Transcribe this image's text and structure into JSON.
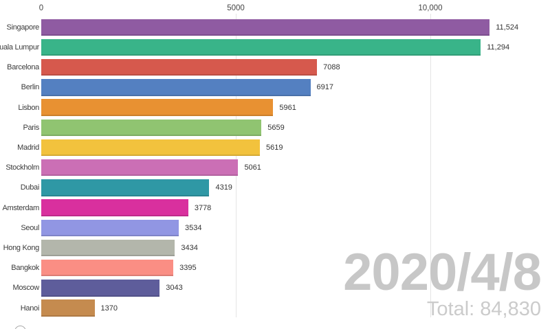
{
  "chart_data": {
    "type": "bar",
    "orientation": "horizontal",
    "title": "",
    "xlabel": "",
    "ylabel": "",
    "categories": [
      "Singapore",
      "Kuala Lumpur",
      "Barcelona",
      "Berlin",
      "Lisbon",
      "Paris",
      "Madrid",
      "Stockholm",
      "Dubai",
      "Amsterdam",
      "Seoul",
      "Hong Kong",
      "Bangkok",
      "Moscow",
      "Hanoi"
    ],
    "values": [
      11524,
      11294,
      7088,
      6917,
      5961,
      5659,
      5619,
      5061,
      4319,
      3778,
      3534,
      3434,
      3395,
      3043,
      1370
    ],
    "value_labels": [
      "11,524",
      "11,294",
      "7088",
      "6917",
      "5961",
      "5659",
      "5619",
      "5061",
      "4319",
      "3778",
      "3534",
      "3434",
      "3395",
      "3043",
      "1370"
    ],
    "bar_colors": [
      "#8f5ba2",
      "#39b489",
      "#d6594d",
      "#5480c1",
      "#e89132",
      "#90c471",
      "#f2c23d",
      "#cb6fb5",
      "#2f98a5",
      "#d9309e",
      "#9196e3",
      "#b3b6ab",
      "#fa8e84",
      "#5e5d9b",
      "#c58b4f"
    ],
    "xlim": [
      0,
      13080
    ],
    "x_ticks": [
      {
        "label": "0",
        "value": 0
      },
      {
        "label": "5000",
        "value": 5000
      },
      {
        "label": "10,000",
        "value": 10000
      }
    ],
    "gridlines": [
      5000,
      10000
    ],
    "grid": "vertical-only",
    "legend": "none"
  },
  "overlay": {
    "date": "2020/4/8",
    "total": "Total: 84,830"
  },
  "icons": {
    "replay_button": "circle-outline"
  },
  "colors": {
    "background": "#ffffff",
    "tick_label": "#444444",
    "category_label": "#3a3a3a",
    "value_label": "#333333",
    "gridline": "#e4e4e4",
    "date_text": "#c7c7c7",
    "total_text": "#cbcbcb"
  }
}
